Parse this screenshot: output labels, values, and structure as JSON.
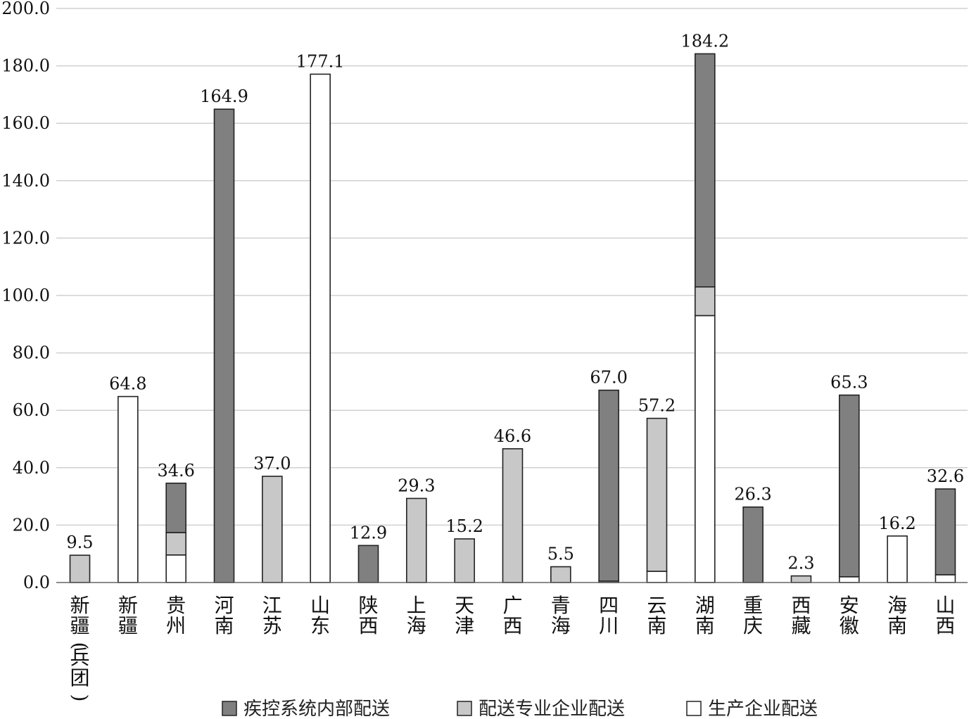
{
  "chart_data": {
    "type": "bar",
    "stacked": true,
    "categories": [
      "新疆(兵团)",
      "新疆",
      "贵州",
      "河南",
      "江苏",
      "山东",
      "陕西",
      "上海",
      "天津",
      "广西",
      "青海",
      "四川",
      "云南",
      "湖南",
      "重庆",
      "西藏",
      "安徽",
      "海南",
      "山西"
    ],
    "series": [
      {
        "name": "疾控系统内部配送",
        "color": "#808080",
        "values": [
          0,
          0,
          17.2,
          164.9,
          0,
          0,
          12.9,
          0,
          0,
          0,
          0,
          66.5,
          0,
          81.2,
          26.3,
          0,
          63.3,
          0,
          29.9
        ]
      },
      {
        "name": "配送专业企业配送",
        "color": "#c8c8c8",
        "values": [
          9.5,
          0,
          7.8,
          0,
          37.0,
          0,
          0,
          29.3,
          15.2,
          46.6,
          5.5,
          0,
          53.3,
          10.0,
          0,
          2.3,
          0,
          0,
          0
        ]
      },
      {
        "name": "生产企业配送",
        "color": "#ffffff",
        "values": [
          0,
          64.8,
          9.6,
          0,
          0,
          177.1,
          0,
          0,
          0,
          0,
          0,
          0.5,
          3.9,
          93.0,
          0,
          0,
          2.0,
          16.2,
          2.7
        ]
      }
    ],
    "totals": [
      "9.5",
      "64.8",
      "34.6",
      "164.9",
      "37.0",
      "177.1",
      "12.9",
      "29.3",
      "15.2",
      "46.6",
      "5.5",
      "67.0",
      "57.2",
      "184.2",
      "26.3",
      "2.3",
      "65.3",
      "16.2",
      "32.6"
    ],
    "yticks": [
      "0.0",
      "20.0",
      "40.0",
      "60.0",
      "80.0",
      "100.0",
      "120.0",
      "140.0",
      "160.0",
      "180.0",
      "200.0"
    ],
    "ylim": [
      0,
      200
    ],
    "title": "",
    "xlabel": "",
    "ylabel": "",
    "grid": true,
    "legend_position": "bottom"
  }
}
